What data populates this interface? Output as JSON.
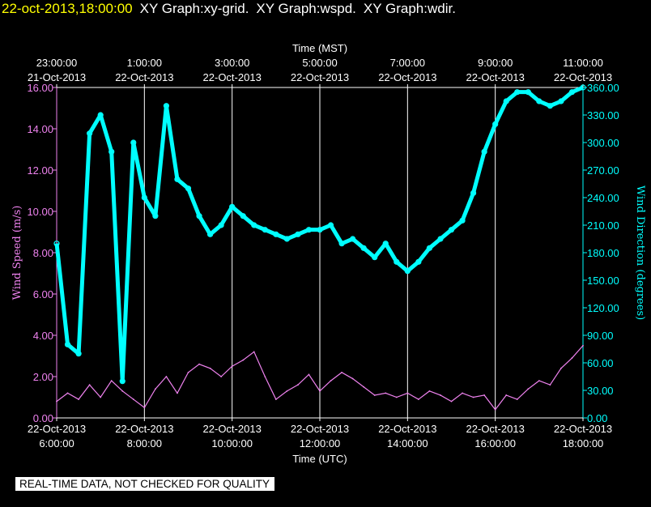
{
  "header": {
    "timestamp": "22-oct-2013,18:00:00",
    "graphs": [
      "XY Graph:xy-grid.",
      "XY Graph:wspd.",
      "XY Graph:wdir."
    ]
  },
  "disclaimer": "REAL-TIME DATA, NOT CHECKED FOR QUALITY",
  "chart_data": {
    "type": "line",
    "xlabel_top": "Time (MST)",
    "xlabel_bottom": "Time (UTC)",
    "ylabel_left": "Wind Speed (m/s)",
    "ylabel_right": "Wind Direction (degrees)",
    "x_range_utc_hours": [
      6.0,
      18.0
    ],
    "ylim_left": [
      0,
      16
    ],
    "ylim_right": [
      0,
      360
    ],
    "grid": "vertical",
    "top_ticks": [
      {
        "x": 6,
        "time": "23:00:00",
        "date": "21-Oct-2013"
      },
      {
        "x": 8,
        "time": "1:00:00",
        "date": "22-Oct-2013"
      },
      {
        "x": 10,
        "time": "3:00:00",
        "date": "22-Oct-2013"
      },
      {
        "x": 12,
        "time": "5:00:00",
        "date": "22-Oct-2013"
      },
      {
        "x": 14,
        "time": "7:00:00",
        "date": "22-Oct-2013"
      },
      {
        "x": 16,
        "time": "9:00:00",
        "date": "22-Oct-2013"
      },
      {
        "x": 18,
        "time": "11:00:00",
        "date": "22-Oct-2013"
      }
    ],
    "bottom_ticks": [
      {
        "x": 6,
        "date": "22-Oct-2013",
        "time": "6:00:00"
      },
      {
        "x": 8,
        "date": "22-Oct-2013",
        "time": "8:00:00"
      },
      {
        "x": 10,
        "date": "22-Oct-2013",
        "time": "10:00:00"
      },
      {
        "x": 12,
        "date": "22-Oct-2013",
        "time": "12:00:00"
      },
      {
        "x": 14,
        "date": "22-Oct-2013",
        "time": "14:00:00"
      },
      {
        "x": 16,
        "date": "22-Oct-2013",
        "time": "16:00:00"
      },
      {
        "x": 18,
        "date": "22-Oct-2013",
        "time": "18:00:00"
      }
    ],
    "left_ticks": [
      "0.00",
      "2.00",
      "4.00",
      "6.00",
      "8.00",
      "10.00",
      "12.00",
      "14.00",
      "16.00"
    ],
    "right_ticks": [
      "0.00",
      "30.00",
      "60.00",
      "90.00",
      "120.00",
      "150.00",
      "180.00",
      "210.00",
      "240.00",
      "270.00",
      "300.00",
      "330.00",
      "360.00"
    ],
    "colors": {
      "wspd": "#ee82ee",
      "wdir": "#00ffff",
      "grid": "#ffffff",
      "timestamp": "#ffff00"
    },
    "series": [
      {
        "key": "wspd",
        "style": "line",
        "x": [
          6.0,
          6.25,
          6.5,
          6.75,
          7.0,
          7.25,
          7.5,
          7.75,
          8.0,
          8.25,
          8.5,
          8.75,
          9.0,
          9.25,
          9.5,
          9.75,
          10.0,
          10.25,
          10.5,
          10.75,
          11.0,
          11.25,
          11.5,
          11.75,
          12.0,
          12.25,
          12.5,
          12.75,
          13.0,
          13.25,
          13.5,
          13.75,
          14.0,
          14.25,
          14.5,
          14.75,
          15.0,
          15.25,
          15.5,
          15.75,
          16.0,
          16.25,
          16.5,
          16.75,
          17.0,
          17.25,
          17.5,
          17.75,
          18.0
        ],
        "y": [
          0.8,
          1.2,
          0.9,
          1.6,
          1.0,
          1.8,
          1.3,
          0.9,
          0.5,
          1.4,
          2.0,
          1.2,
          2.2,
          2.6,
          2.4,
          2.0,
          2.5,
          2.8,
          3.2,
          2.0,
          0.9,
          1.3,
          1.6,
          2.1,
          1.3,
          1.8,
          2.2,
          1.9,
          1.5,
          1.1,
          1.2,
          1.0,
          1.2,
          0.9,
          1.3,
          1.1,
          0.8,
          1.2,
          1.0,
          1.1,
          0.4,
          1.1,
          0.9,
          1.4,
          1.8,
          1.6,
          2.4,
          2.9,
          3.5
        ]
      },
      {
        "key": "wdir",
        "style": "circle-markers",
        "x": [
          6.0,
          6.25,
          6.5,
          6.75,
          7.0,
          7.25,
          7.5,
          7.75,
          8.0,
          8.25,
          8.5,
          8.75,
          9.0,
          9.25,
          9.5,
          9.75,
          10.0,
          10.25,
          10.5,
          10.75,
          11.0,
          11.25,
          11.5,
          11.75,
          12.0,
          12.25,
          12.5,
          12.75,
          13.0,
          13.25,
          13.5,
          13.75,
          14.0,
          14.25,
          14.5,
          14.75,
          15.0,
          15.25,
          15.5,
          15.75,
          16.0,
          16.25,
          16.5,
          16.75,
          17.0,
          17.25,
          17.5,
          17.75,
          18.0
        ],
        "y": [
          190,
          80,
          70,
          310,
          330,
          290,
          40,
          300,
          240,
          220,
          340,
          260,
          250,
          220,
          200,
          210,
          230,
          220,
          210,
          205,
          200,
          195,
          200,
          205,
          205,
          210,
          190,
          195,
          185,
          175,
          190,
          170,
          160,
          170,
          185,
          195,
          205,
          215,
          245,
          290,
          320,
          345,
          355,
          355,
          345,
          340,
          345,
          355,
          360
        ]
      }
    ]
  }
}
